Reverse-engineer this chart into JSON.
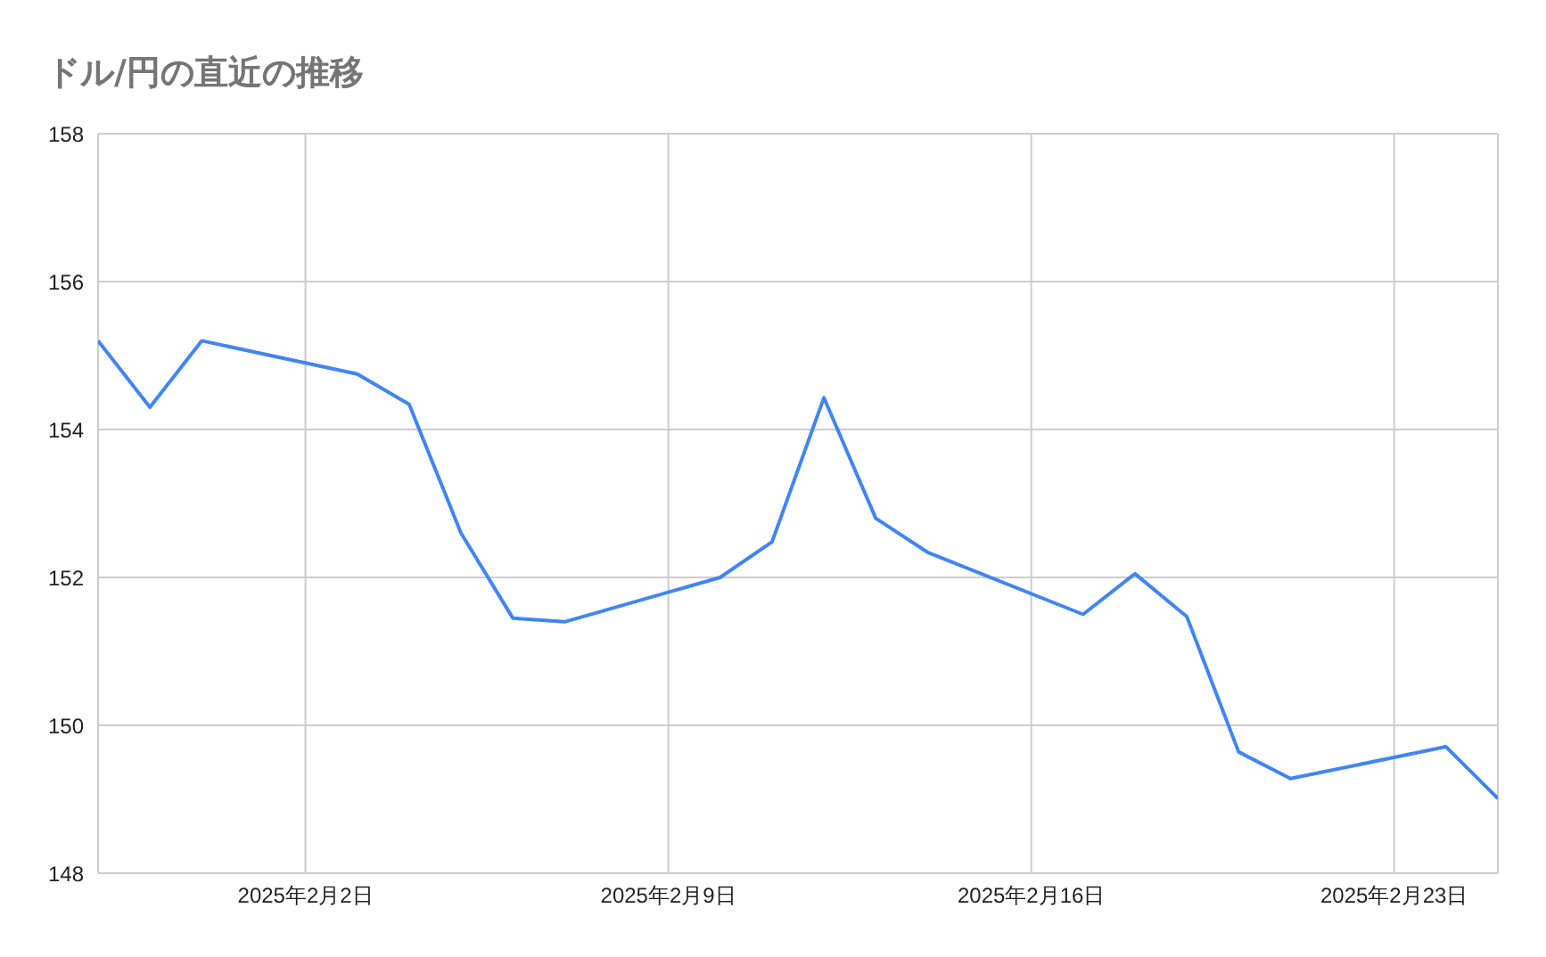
{
  "chart_data": {
    "type": "line",
    "title": "ドル/円の直近の推移",
    "x": [
      "2025-01-29",
      "2025-01-30",
      "2025-01-31",
      "2025-02-03",
      "2025-02-04",
      "2025-02-05",
      "2025-02-06",
      "2025-02-07",
      "2025-02-10",
      "2025-02-11",
      "2025-02-12",
      "2025-02-13",
      "2025-02-14",
      "2025-02-17",
      "2025-02-18",
      "2025-02-19",
      "2025-02-20",
      "2025-02-21",
      "2025-02-24",
      "2025-02-25"
    ],
    "series": [
      {
        "color": "#4285f4",
        "values": [
          155.2,
          154.3,
          155.2,
          154.75,
          154.34,
          152.6,
          151.45,
          151.4,
          152.0,
          152.48,
          154.43,
          152.8,
          152.34,
          151.5,
          152.05,
          151.47,
          149.64,
          149.28,
          149.71,
          149.01
        ]
      }
    ],
    "xlim": [
      "2025-01-29",
      "2025-02-25"
    ],
    "xticks": [
      {
        "value": "2025-02-02",
        "label": "2025年2月2日"
      },
      {
        "value": "2025-02-09",
        "label": "2025年2月9日"
      },
      {
        "value": "2025-02-16",
        "label": "2025年2月16日"
      },
      {
        "value": "2025-02-23",
        "label": "2025年2月23日"
      }
    ],
    "ylim": [
      148,
      158
    ],
    "yticks": [
      148,
      150,
      152,
      154,
      156,
      158
    ],
    "grid": true,
    "legend": false,
    "marker": "none",
    "line_style": "solid"
  }
}
